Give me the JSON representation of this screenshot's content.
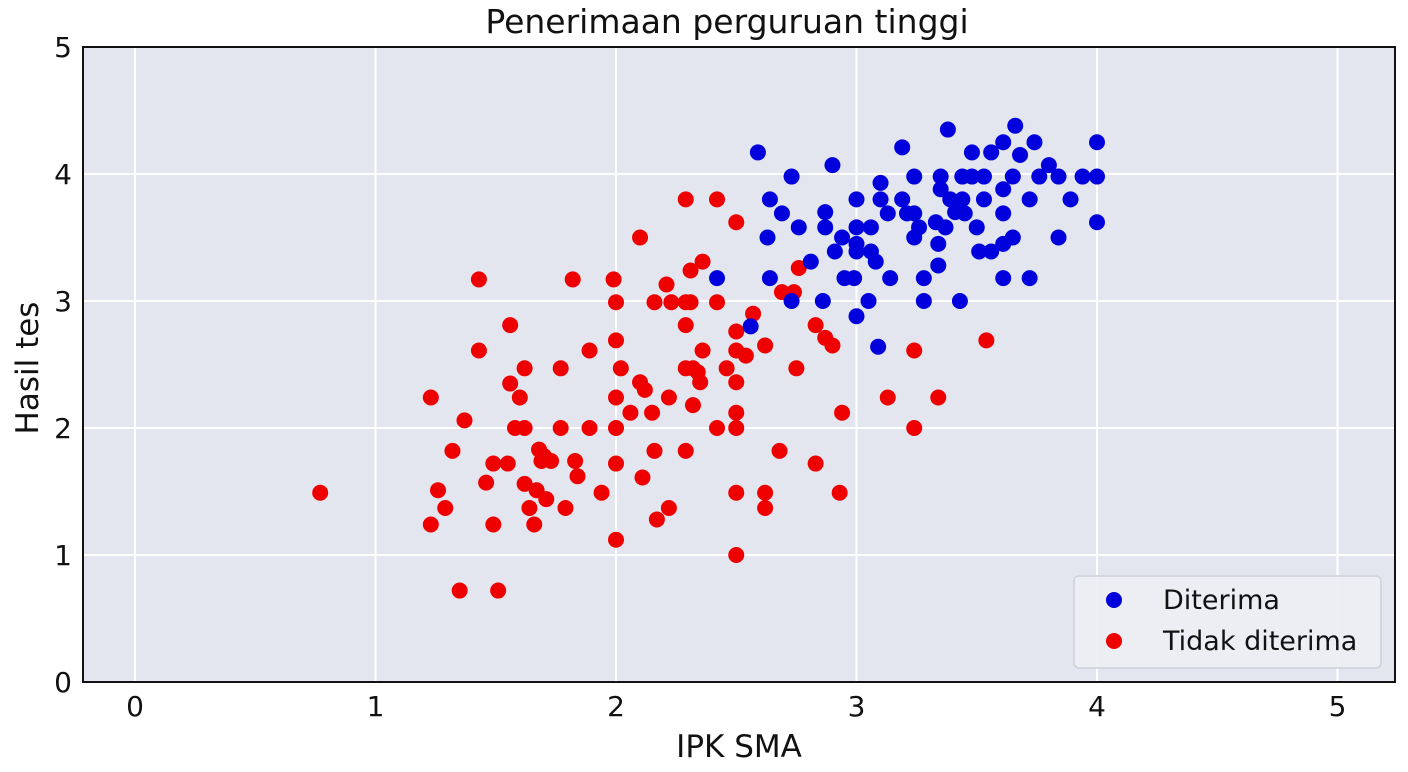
{
  "chart_data": {
    "type": "scatter",
    "title": "Penerimaan perguruan tinggi",
    "xlabel": "IPK SMA",
    "ylabel": "Hasil tes",
    "xlim": [
      -0.2,
      5.25
    ],
    "ylim": [
      0,
      5
    ],
    "xticks": [
      0,
      1,
      2,
      3,
      4,
      5
    ],
    "yticks": [
      0,
      1,
      2,
      3,
      4,
      5
    ],
    "grid": true,
    "background_color": "#e4e6ef",
    "legend": {
      "position": "lower right",
      "entries": [
        "Diterima",
        "Tidak diterima"
      ]
    },
    "series": [
      {
        "name": "Diterima",
        "color": "#0000dd",
        "points": [
          [
            2.59,
            4.17
          ],
          [
            2.63,
            3.5
          ],
          [
            2.64,
            3.8
          ],
          [
            2.64,
            3.18
          ],
          [
            2.69,
            3.69
          ],
          [
            2.73,
            3.98
          ],
          [
            2.73,
            3.0
          ],
          [
            2.76,
            3.58
          ],
          [
            2.56,
            2.8
          ],
          [
            2.42,
            3.18
          ],
          [
            2.81,
            3.31
          ],
          [
            2.86,
            3.0
          ],
          [
            2.87,
            3.7
          ],
          [
            2.87,
            3.58
          ],
          [
            2.91,
            3.39
          ],
          [
            2.9,
            4.07
          ],
          [
            2.94,
            3.5
          ],
          [
            2.95,
            3.18
          ],
          [
            2.99,
            3.18
          ],
          [
            3.0,
            3.8
          ],
          [
            3.0,
            3.58
          ],
          [
            3.0,
            3.45
          ],
          [
            3.0,
            3.39
          ],
          [
            3.0,
            2.88
          ],
          [
            3.05,
            3.0
          ],
          [
            3.06,
            3.58
          ],
          [
            3.06,
            3.39
          ],
          [
            3.08,
            3.31
          ],
          [
            3.09,
            2.64
          ],
          [
            3.1,
            3.93
          ],
          [
            3.1,
            3.8
          ],
          [
            3.13,
            3.69
          ],
          [
            3.14,
            3.18
          ],
          [
            3.19,
            4.21
          ],
          [
            3.19,
            3.8
          ],
          [
            3.21,
            3.69
          ],
          [
            3.24,
            3.5
          ],
          [
            3.24,
            3.98
          ],
          [
            3.24,
            3.69
          ],
          [
            3.26,
            3.58
          ],
          [
            3.28,
            3.0
          ],
          [
            3.28,
            3.18
          ],
          [
            3.33,
            3.62
          ],
          [
            3.34,
            3.28
          ],
          [
            3.34,
            3.45
          ],
          [
            3.35,
            3.98
          ],
          [
            3.35,
            3.88
          ],
          [
            3.37,
            3.58
          ],
          [
            3.38,
            4.35
          ],
          [
            3.39,
            3.8
          ],
          [
            3.41,
            3.7
          ],
          [
            3.43,
            3.0
          ],
          [
            3.44,
            3.98
          ],
          [
            3.44,
            3.8
          ],
          [
            3.45,
            3.69
          ],
          [
            3.48,
            3.98
          ],
          [
            3.48,
            4.17
          ],
          [
            3.5,
            3.58
          ],
          [
            3.51,
            3.39
          ],
          [
            3.53,
            3.98
          ],
          [
            3.53,
            3.8
          ],
          [
            3.56,
            3.39
          ],
          [
            3.56,
            4.17
          ],
          [
            3.61,
            4.25
          ],
          [
            3.61,
            3.88
          ],
          [
            3.61,
            3.69
          ],
          [
            3.61,
            3.45
          ],
          [
            3.61,
            3.18
          ],
          [
            3.65,
            3.5
          ],
          [
            3.65,
            3.98
          ],
          [
            3.66,
            4.38
          ],
          [
            3.68,
            4.15
          ],
          [
            3.72,
            3.8
          ],
          [
            3.72,
            3.18
          ],
          [
            3.74,
            4.25
          ],
          [
            3.76,
            3.98
          ],
          [
            3.8,
            4.07
          ],
          [
            3.84,
            3.98
          ],
          [
            3.84,
            3.5
          ],
          [
            3.89,
            3.8
          ],
          [
            3.94,
            3.98
          ],
          [
            4.0,
            4.25
          ],
          [
            4.0,
            3.98
          ],
          [
            4.0,
            3.62
          ]
        ]
      },
      {
        "name": "Tidak diterima",
        "color": "#ee0000",
        "points": [
          [
            0.77,
            1.49
          ],
          [
            1.23,
            2.24
          ],
          [
            1.23,
            1.24
          ],
          [
            1.26,
            1.51
          ],
          [
            1.29,
            1.37
          ],
          [
            1.32,
            1.82
          ],
          [
            1.35,
            0.72
          ],
          [
            1.37,
            2.06
          ],
          [
            1.43,
            3.17
          ],
          [
            1.43,
            2.61
          ],
          [
            1.46,
            1.57
          ],
          [
            1.49,
            1.72
          ],
          [
            1.49,
            1.24
          ],
          [
            1.51,
            0.72
          ],
          [
            1.55,
            1.72
          ],
          [
            1.56,
            2.81
          ],
          [
            1.56,
            2.35
          ],
          [
            1.6,
            2.24
          ],
          [
            1.58,
            2.0
          ],
          [
            1.62,
            2.0
          ],
          [
            1.62,
            2.47
          ],
          [
            1.62,
            1.56
          ],
          [
            1.64,
            1.37
          ],
          [
            1.66,
            1.24
          ],
          [
            1.67,
            1.51
          ],
          [
            1.68,
            1.83
          ],
          [
            1.69,
            1.74
          ],
          [
            1.7,
            1.78
          ],
          [
            1.71,
            1.44
          ],
          [
            1.73,
            1.74
          ],
          [
            1.77,
            2.47
          ],
          [
            1.77,
            2.0
          ],
          [
            1.79,
            1.37
          ],
          [
            1.82,
            3.17
          ],
          [
            1.83,
            1.74
          ],
          [
            1.84,
            1.62
          ],
          [
            1.89,
            2.0
          ],
          [
            1.89,
            2.61
          ],
          [
            1.94,
            1.49
          ],
          [
            1.99,
            3.17
          ],
          [
            2.0,
            2.99
          ],
          [
            2.0,
            2.69
          ],
          [
            2.0,
            2.24
          ],
          [
            2.0,
            2.0
          ],
          [
            2.0,
            1.72
          ],
          [
            2.0,
            1.12
          ],
          [
            2.02,
            2.47
          ],
          [
            2.06,
            2.12
          ],
          [
            2.1,
            3.5
          ],
          [
            2.1,
            2.36
          ],
          [
            2.12,
            2.3
          ],
          [
            2.11,
            1.61
          ],
          [
            2.15,
            2.12
          ],
          [
            2.16,
            1.82
          ],
          [
            2.16,
            2.99
          ],
          [
            2.17,
            1.28
          ],
          [
            2.21,
            3.13
          ],
          [
            2.22,
            2.24
          ],
          [
            2.22,
            1.37
          ],
          [
            2.23,
            2.99
          ],
          [
            2.29,
            3.8
          ],
          [
            2.29,
            2.99
          ],
          [
            2.29,
            2.81
          ],
          [
            2.29,
            2.47
          ],
          [
            2.29,
            1.82
          ],
          [
            2.31,
            3.24
          ],
          [
            2.31,
            2.99
          ],
          [
            2.32,
            2.47
          ],
          [
            2.32,
            2.18
          ],
          [
            2.34,
            2.44
          ],
          [
            2.35,
            2.36
          ],
          [
            2.36,
            3.31
          ],
          [
            2.36,
            2.61
          ],
          [
            2.42,
            3.8
          ],
          [
            2.42,
            2.99
          ],
          [
            2.42,
            2.0
          ],
          [
            2.46,
            2.47
          ],
          [
            2.5,
            3.62
          ],
          [
            2.5,
            2.76
          ],
          [
            2.5,
            2.61
          ],
          [
            2.5,
            2.36
          ],
          [
            2.5,
            2.12
          ],
          [
            2.5,
            2.0
          ],
          [
            2.5,
            1.49
          ],
          [
            2.5,
            1.0
          ],
          [
            2.54,
            2.57
          ],
          [
            2.57,
            2.9
          ],
          [
            2.62,
            1.49
          ],
          [
            2.62,
            1.37
          ],
          [
            2.62,
            2.65
          ],
          [
            2.68,
            1.82
          ],
          [
            2.69,
            3.07
          ],
          [
            2.74,
            3.07
          ],
          [
            2.75,
            2.47
          ],
          [
            2.76,
            3.26
          ],
          [
            2.83,
            1.72
          ],
          [
            2.83,
            2.81
          ],
          [
            2.87,
            2.71
          ],
          [
            2.9,
            2.65
          ],
          [
            2.93,
            1.49
          ],
          [
            2.94,
            2.12
          ],
          [
            3.13,
            2.24
          ],
          [
            3.24,
            2.0
          ],
          [
            3.24,
            2.61
          ],
          [
            3.34,
            2.24
          ],
          [
            3.54,
            2.69
          ]
        ]
      }
    ]
  }
}
